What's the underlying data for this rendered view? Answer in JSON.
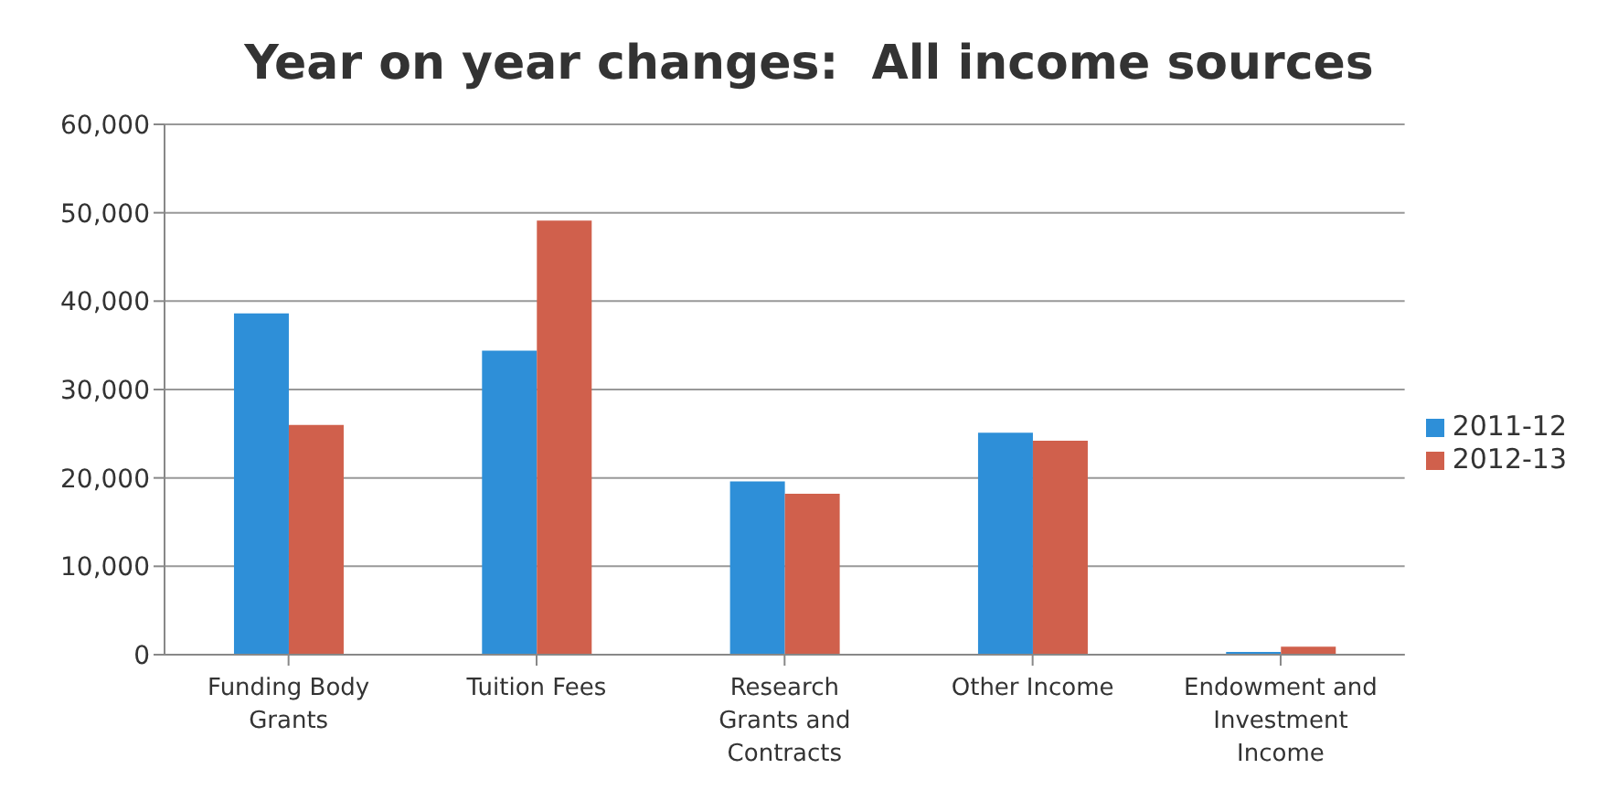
{
  "chart_data": {
    "type": "bar",
    "title": "Year on year changes:  All income sources",
    "categories": [
      "Funding Body Grants",
      "Tuition Fees",
      "Research Grants and Contracts",
      "Other Income",
      "Endowment and Investment Income"
    ],
    "series": [
      {
        "name": "2011-12",
        "color": "#2e8fd8",
        "values": [
          38600,
          34400,
          19600,
          25100,
          300
        ]
      },
      {
        "name": "2012-13",
        "color": "#d0604c",
        "values": [
          26000,
          49100,
          18200,
          24200,
          900
        ]
      }
    ],
    "ylim": [
      0,
      60000
    ],
    "yticks": [
      0,
      {
        "value": 10000,
        "label": "10,000"
      },
      {
        "value": 20000,
        "label": "20,000"
      },
      {
        "value": 30000,
        "label": "30,000"
      },
      {
        "value": 40000,
        "label": "40,000"
      },
      {
        "value": 50000,
        "label": "50,000"
      },
      {
        "value": 60000,
        "label": "60,000"
      }
    ],
    "grid": "y",
    "legend": "right"
  }
}
